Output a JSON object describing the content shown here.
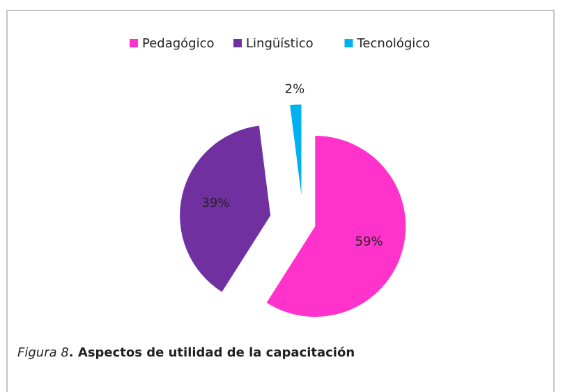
{
  "chart_data": {
    "type": "pie",
    "categories": [
      "Pedagógico",
      "Lingüístico",
      "Tecnológico"
    ],
    "values": [
      59,
      39,
      2
    ],
    "value_labels": [
      "59%",
      "39%",
      "2%"
    ],
    "colors": [
      "#ff33cc",
      "#7030a0",
      "#00b0f0"
    ],
    "legend": "top",
    "caption_label": "Figura 8",
    "caption_text": ". Aspectos de utilidad de la capacitación"
  }
}
